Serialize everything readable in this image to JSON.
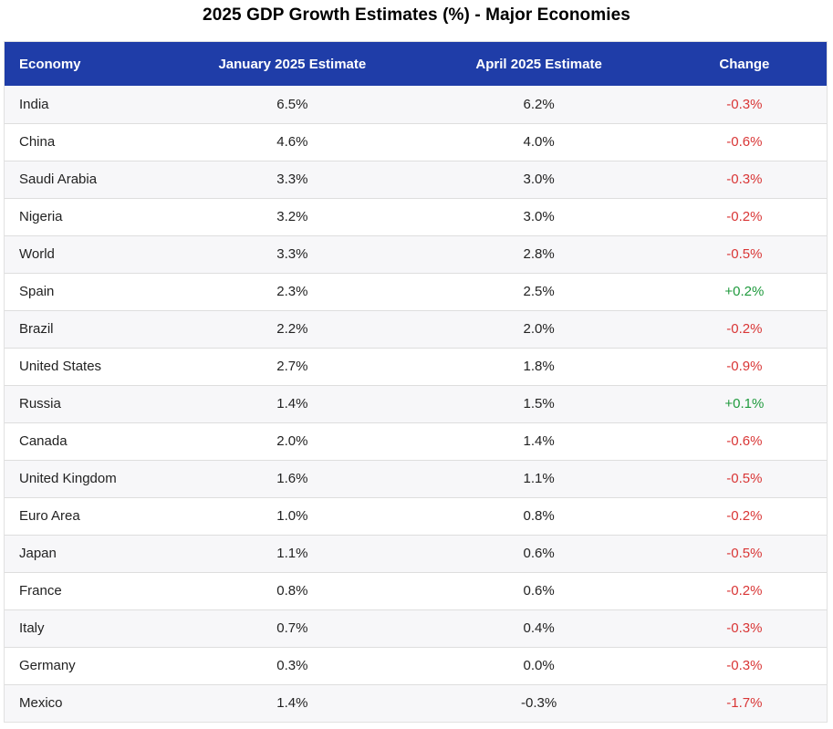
{
  "page": {
    "title": "2025 GDP Growth Estimates (%) - Major Economies"
  },
  "colors": {
    "header_bg": "#1f3da8",
    "header_text": "#ffffff",
    "negative": "#d93636",
    "positive": "#1f9a3d"
  },
  "chart_data": {
    "type": "table",
    "title": "2025 GDP Growth Estimates (%) - Major Economies",
    "columns": [
      "Economy",
      "January 2025 Estimate",
      "April 2025 Estimate",
      "Change"
    ],
    "rows": [
      [
        "India",
        "6.5%",
        "6.2%",
        "-0.3%"
      ],
      [
        "China",
        "4.6%",
        "4.0%",
        "-0.6%"
      ],
      [
        "Saudi Arabia",
        "3.3%",
        "3.0%",
        "-0.3%"
      ],
      [
        "Nigeria",
        "3.2%",
        "3.0%",
        "-0.2%"
      ],
      [
        "World",
        "3.3%",
        "2.8%",
        "-0.5%"
      ],
      [
        "Spain",
        "2.3%",
        "2.5%",
        "+0.2%"
      ],
      [
        "Brazil",
        "2.2%",
        "2.0%",
        "-0.2%"
      ],
      [
        "United States",
        "2.7%",
        "1.8%",
        "-0.9%"
      ],
      [
        "Russia",
        "1.4%",
        "1.5%",
        "+0.1%"
      ],
      [
        "Canada",
        "2.0%",
        "1.4%",
        "-0.6%"
      ],
      [
        "United Kingdom",
        "1.6%",
        "1.1%",
        "-0.5%"
      ],
      [
        "Euro Area",
        "1.0%",
        "0.8%",
        "-0.2%"
      ],
      [
        "Japan",
        "1.1%",
        "0.6%",
        "-0.5%"
      ],
      [
        "France",
        "0.8%",
        "0.6%",
        "-0.2%"
      ],
      [
        "Italy",
        "0.7%",
        "0.4%",
        "-0.3%"
      ],
      [
        "Germany",
        "0.3%",
        "0.0%",
        "-0.3%"
      ],
      [
        "Mexico",
        "1.4%",
        "-0.3%",
        "-1.7%"
      ]
    ]
  }
}
